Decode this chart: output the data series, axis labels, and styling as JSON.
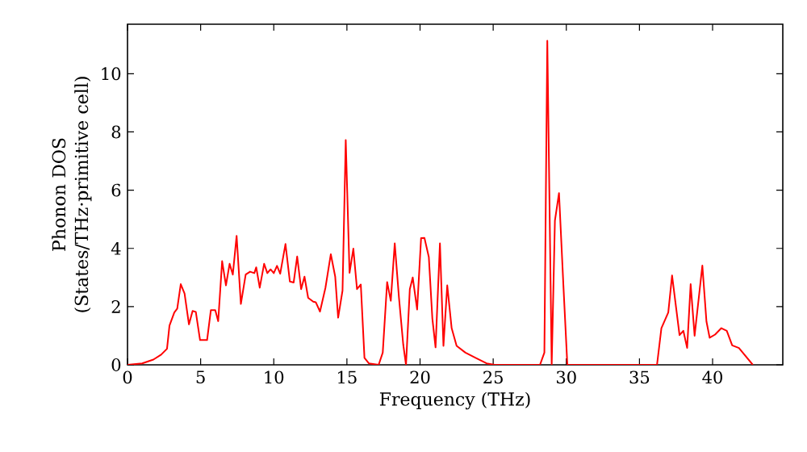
{
  "chart_data": {
    "type": "line",
    "xlabel": "Frequency (THz)",
    "ylabel": "Phonon DOS (States/THz·primitive cell)",
    "xlim": [
      0,
      44.8
    ],
    "ylim": [
      0,
      11.7
    ],
    "xticks": [
      0,
      5,
      10,
      15,
      20,
      25,
      30,
      35,
      40
    ],
    "yticks": [
      0,
      2,
      4,
      6,
      8,
      10
    ],
    "x": [
      0,
      1.0,
      1.77,
      2.3,
      2.7,
      2.87,
      3.2,
      3.4,
      3.64,
      3.9,
      4.2,
      4.45,
      4.67,
      4.96,
      5.44,
      5.7,
      6.0,
      6.2,
      6.47,
      6.73,
      6.98,
      7.2,
      7.46,
      7.75,
      8.08,
      8.38,
      8.67,
      8.8,
      9.04,
      9.34,
      9.56,
      9.78,
      10.0,
      10.22,
      10.44,
      10.8,
      11.1,
      11.36,
      11.6,
      11.87,
      12.1,
      12.35,
      12.7,
      12.87,
      13.16,
      13.53,
      13.9,
      14.2,
      14.4,
      14.7,
      14.92,
      15.18,
      15.44,
      15.69,
      15.95,
      16.2,
      16.5,
      17.17,
      17.45,
      17.75,
      18.0,
      18.27,
      18.56,
      18.85,
      19.04,
      19.3,
      19.5,
      19.8,
      20.07,
      20.3,
      20.6,
      20.84,
      21.06,
      21.36,
      21.6,
      21.86,
      22.16,
      22.5,
      23.1,
      23.8,
      24.55,
      25.1,
      28.2,
      28.5,
      28.7,
      29.0,
      29.22,
      29.5,
      29.8,
      30.07,
      36.2,
      36.5,
      36.97,
      37.23,
      37.74,
      38.0,
      38.26,
      38.5,
      38.77,
      39.3,
      39.58,
      39.8,
      40.17,
      40.6,
      40.97,
      41.34,
      41.8,
      42.75
    ],
    "series": [
      {
        "color": "#ff0000",
        "values": [
          0,
          0.05,
          0.18,
          0.35,
          0.55,
          1.35,
          1.8,
          1.93,
          2.77,
          2.45,
          1.39,
          1.85,
          1.82,
          0.85,
          0.85,
          1.88,
          1.88,
          1.5,
          3.56,
          2.73,
          3.47,
          3.1,
          4.43,
          2.09,
          3.1,
          3.2,
          3.15,
          3.35,
          2.65,
          3.47,
          3.15,
          3.28,
          3.15,
          3.4,
          3.13,
          4.15,
          2.86,
          2.83,
          3.72,
          2.6,
          3.03,
          2.3,
          2.17,
          2.15,
          1.83,
          2.64,
          3.8,
          3.03,
          1.62,
          2.55,
          7.72,
          3.16,
          3.99,
          2.6,
          2.76,
          0.24,
          0.05,
          0,
          0.42,
          2.84,
          2.2,
          4.17,
          2.3,
          0.7,
          0,
          2.6,
          3.0,
          1.9,
          4.35,
          4.36,
          3.7,
          1.6,
          0.6,
          4.17,
          0.65,
          2.73,
          1.26,
          0.65,
          0.42,
          0.24,
          0.05,
          0,
          0,
          0.42,
          11.13,
          0,
          4.95,
          5.9,
          2.73,
          0,
          0,
          1.26,
          1.8,
          3.07,
          1.02,
          1.17,
          0.58,
          2.77,
          1.0,
          3.41,
          1.49,
          0.93,
          1.04,
          1.26,
          1.17,
          0.67,
          0.58,
          0
        ]
      }
    ]
  }
}
